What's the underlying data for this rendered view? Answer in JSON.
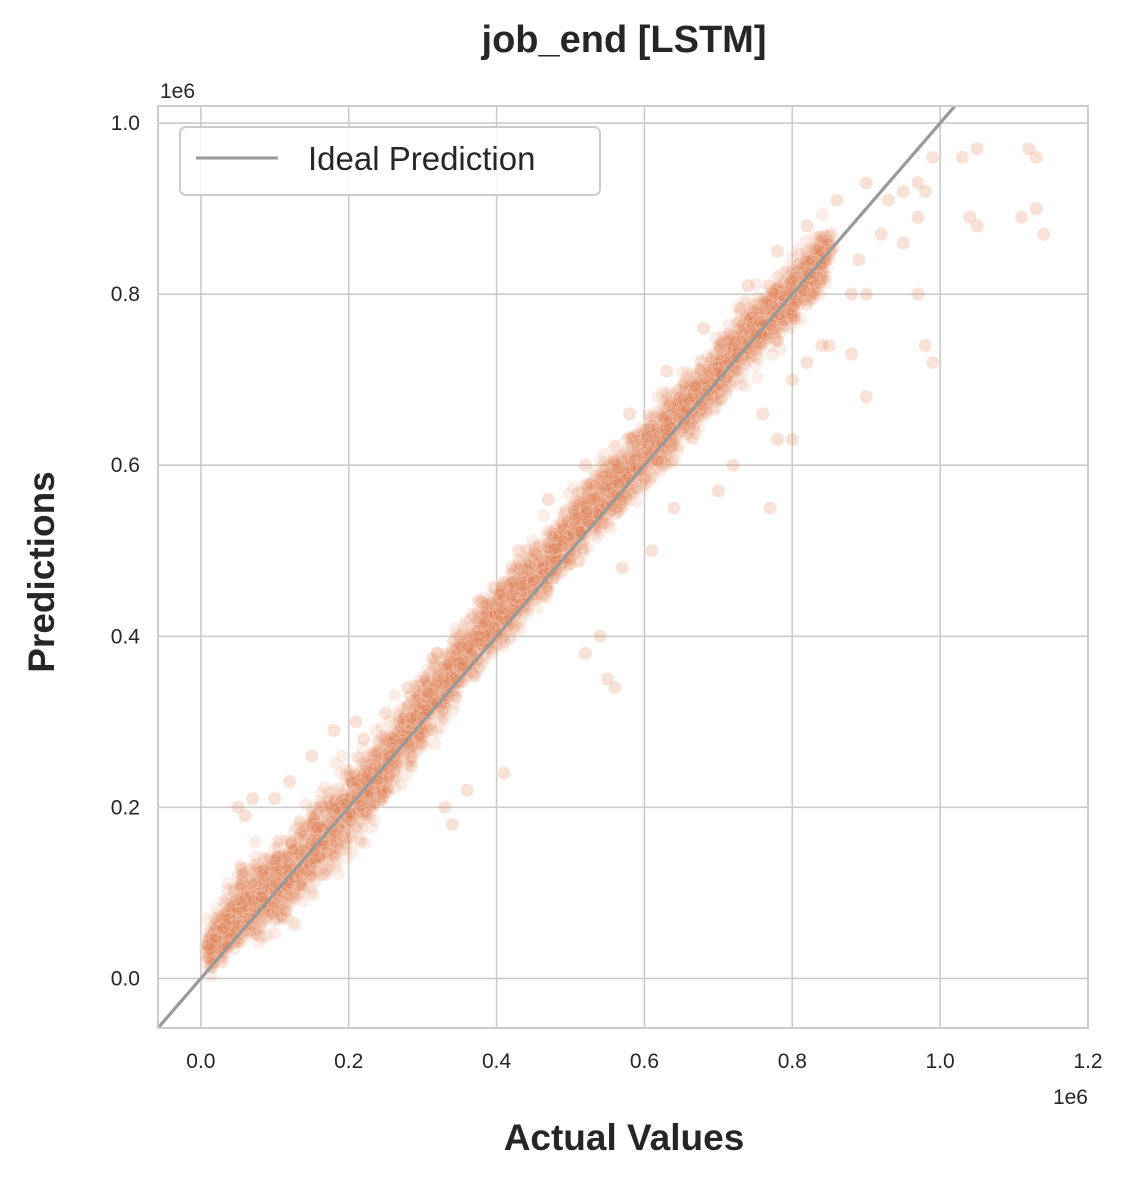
{
  "chart_data": {
    "type": "scatter",
    "title": "job_end [LSTM]",
    "xlabel": "Actual Values",
    "ylabel": "Predictions",
    "x_offset_label": "1e6",
    "y_offset_label": "1e6",
    "xlim": [
      -0.058,
      1.2
    ],
    "ylim": [
      -0.058,
      1.02
    ],
    "x_ticks": [
      0.0,
      0.2,
      0.4,
      0.6,
      0.8,
      1.0,
      1.2
    ],
    "x_tick_labels": [
      "0.0",
      "0.2",
      "0.4",
      "0.6",
      "0.8",
      "1.0",
      "1.2"
    ],
    "y_ticks": [
      0.0,
      0.2,
      0.4,
      0.6,
      0.8,
      1.0
    ],
    "y_tick_labels": [
      "0.0",
      "0.2",
      "0.4",
      "0.6",
      "0.8",
      "1.0"
    ],
    "grid": true,
    "legend": {
      "position": "top-left",
      "entries": [
        "Ideal Prediction"
      ]
    },
    "ideal_line": {
      "name": "Ideal Prediction",
      "points": [
        [
          -0.058,
          -0.058
        ],
        [
          1.02,
          1.02
        ]
      ],
      "color": "#999999"
    },
    "scatter_color": "#e07b4a",
    "scatter_density": [
      {
        "x": 0.01,
        "y": 0.03,
        "spread": 0.03
      },
      {
        "x": 0.05,
        "y": 0.08,
        "spread": 0.05
      },
      {
        "x": 0.1,
        "y": 0.11,
        "spread": 0.06
      },
      {
        "x": 0.15,
        "y": 0.15,
        "spread": 0.06
      },
      {
        "x": 0.2,
        "y": 0.2,
        "spread": 0.06
      },
      {
        "x": 0.25,
        "y": 0.25,
        "spread": 0.05
      },
      {
        "x": 0.3,
        "y": 0.31,
        "spread": 0.05
      },
      {
        "x": 0.35,
        "y": 0.37,
        "spread": 0.045
      },
      {
        "x": 0.4,
        "y": 0.42,
        "spread": 0.045
      },
      {
        "x": 0.45,
        "y": 0.47,
        "spread": 0.045
      },
      {
        "x": 0.5,
        "y": 0.52,
        "spread": 0.045
      },
      {
        "x": 0.55,
        "y": 0.57,
        "spread": 0.045
      },
      {
        "x": 0.6,
        "y": 0.61,
        "spread": 0.045
      },
      {
        "x": 0.65,
        "y": 0.66,
        "spread": 0.045
      },
      {
        "x": 0.7,
        "y": 0.71,
        "spread": 0.045
      },
      {
        "x": 0.75,
        "y": 0.76,
        "spread": 0.045
      },
      {
        "x": 0.8,
        "y": 0.8,
        "spread": 0.045
      },
      {
        "x": 0.85,
        "y": 0.85,
        "spread": 0.04
      }
    ],
    "outliers": [
      [
        0.9,
        0.93
      ],
      [
        0.93,
        0.91
      ],
      [
        0.95,
        0.92
      ],
      [
        0.97,
        0.93
      ],
      [
        0.99,
        0.96
      ],
      [
        1.03,
        0.96
      ],
      [
        1.05,
        0.97
      ],
      [
        1.12,
        0.97
      ],
      [
        1.13,
        0.96
      ],
      [
        1.14,
        0.87
      ],
      [
        1.13,
        0.9
      ],
      [
        1.11,
        0.89
      ],
      [
        1.04,
        0.89
      ],
      [
        1.05,
        0.88
      ],
      [
        0.98,
        0.92
      ],
      [
        0.97,
        0.89
      ],
      [
        0.95,
        0.86
      ],
      [
        0.92,
        0.87
      ],
      [
        0.89,
        0.84
      ],
      [
        0.88,
        0.8
      ],
      [
        0.9,
        0.8
      ],
      [
        0.97,
        0.8
      ],
      [
        0.98,
        0.74
      ],
      [
        0.99,
        0.72
      ],
      [
        0.9,
        0.68
      ],
      [
        0.88,
        0.73
      ],
      [
        0.85,
        0.74
      ],
      [
        0.84,
        0.74
      ],
      [
        0.82,
        0.72
      ],
      [
        0.8,
        0.7
      ],
      [
        0.76,
        0.66
      ],
      [
        0.78,
        0.63
      ],
      [
        0.8,
        0.63
      ],
      [
        0.77,
        0.55
      ],
      [
        0.72,
        0.6
      ],
      [
        0.7,
        0.57
      ],
      [
        0.64,
        0.55
      ],
      [
        0.61,
        0.5
      ],
      [
        0.57,
        0.48
      ],
      [
        0.54,
        0.4
      ],
      [
        0.52,
        0.38
      ],
      [
        0.55,
        0.35
      ],
      [
        0.56,
        0.34
      ],
      [
        0.41,
        0.24
      ],
      [
        0.36,
        0.22
      ],
      [
        0.33,
        0.2
      ],
      [
        0.34,
        0.18
      ],
      [
        0.06,
        0.19
      ],
      [
        0.05,
        0.2
      ],
      [
        0.07,
        0.21
      ],
      [
        0.1,
        0.21
      ],
      [
        0.12,
        0.23
      ],
      [
        0.15,
        0.26
      ],
      [
        0.18,
        0.29
      ],
      [
        0.21,
        0.3
      ],
      [
        0.22,
        0.28
      ],
      [
        0.25,
        0.31
      ],
      [
        0.28,
        0.34
      ],
      [
        0.32,
        0.38
      ],
      [
        0.38,
        0.44
      ],
      [
        0.43,
        0.5
      ],
      [
        0.47,
        0.56
      ],
      [
        0.52,
        0.6
      ],
      [
        0.58,
        0.66
      ],
      [
        0.63,
        0.71
      ],
      [
        0.68,
        0.76
      ],
      [
        0.74,
        0.81
      ],
      [
        0.78,
        0.85
      ],
      [
        0.82,
        0.88
      ],
      [
        0.86,
        0.91
      ]
    ]
  }
}
